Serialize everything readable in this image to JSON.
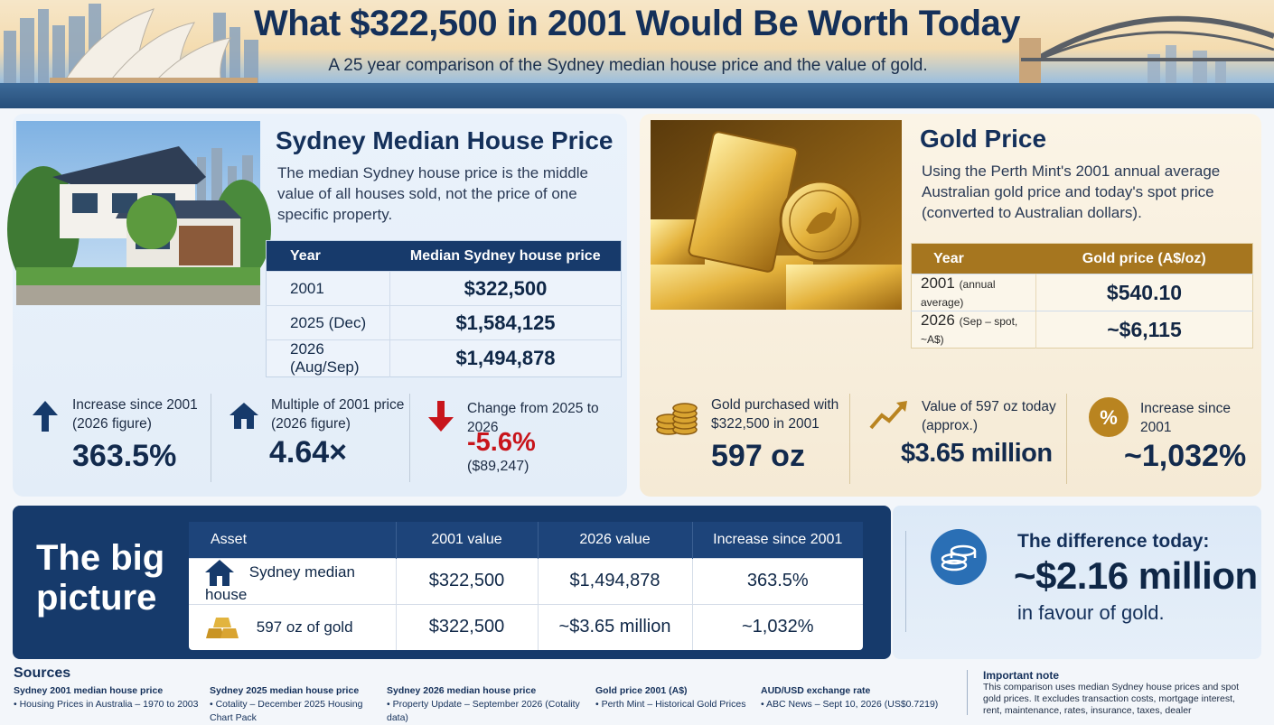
{
  "header": {
    "title": "What $322,500 in 2001 Would Be Worth Today",
    "subtitle": "A 25 year comparison of the Sydney median house price and the value of gold."
  },
  "house": {
    "title": "Sydney Median House Price",
    "description": "The median Sydney house price is the middle value of all houses sold, not the price of one specific property.",
    "table": {
      "headers": [
        "Year",
        "Median Sydney house price"
      ],
      "rows": [
        {
          "year": "2001",
          "note": "",
          "price": "$322,500"
        },
        {
          "year": "2025",
          "note": "(Dec)",
          "price": "$1,584,125"
        },
        {
          "year": "2026",
          "note": "(Aug/Sep)",
          "price": "$1,494,878"
        }
      ]
    },
    "stats": [
      {
        "label": "Increase since 2001 (2026 figure)",
        "value": "363.5%",
        "sub": ""
      },
      {
        "label": "Multiple of 2001 price (2026 figure)",
        "value": "4.64×",
        "sub": ""
      },
      {
        "label": "Change from 2025 to 2026",
        "value": "-5.6%",
        "sub": "($89,247)"
      }
    ]
  },
  "gold": {
    "title": "Gold Price",
    "description": "Using the Perth Mint's 2001 annual average Australian gold price and today's spot price (converted to Australian dollars).",
    "table": {
      "headers": [
        "Year",
        "Gold price (A$/oz)"
      ],
      "rows": [
        {
          "year": "2001",
          "note": "(annual average)",
          "price": "$540.10"
        },
        {
          "year": "2026",
          "note": "(Sep – spot, ~A$)",
          "price": "~$6,115"
        }
      ]
    },
    "stats": [
      {
        "label": "Gold purchased with $322,500 in 2001",
        "value": "597 oz"
      },
      {
        "label": "Value of 597 oz today (approx.)",
        "value": "$3.65 million"
      },
      {
        "label": "Increase since 2001",
        "value": "~1,032%"
      }
    ]
  },
  "big_picture": {
    "heading_line1": "The big",
    "heading_line2": "picture",
    "headers": [
      "Asset",
      "2001 value",
      "2026 value",
      "Increase since 2001"
    ],
    "rows": [
      {
        "asset": "Sydney median house",
        "icon": "house-icon",
        "v2001": "$322,500",
        "v2026": "$1,494,878",
        "increase": "363.5%"
      },
      {
        "asset": "597 oz of gold",
        "icon": "gold-bars-icon",
        "v2001": "$322,500",
        "v2026": "~$3.65 million",
        "increase": "~1,032%"
      }
    ],
    "difference_label": "The difference today:",
    "difference_value": "~$2.16 million",
    "difference_sub": "in favour of gold."
  },
  "sources": {
    "title": "Sources",
    "items": [
      {
        "heading": "Sydney 2001 median house price",
        "line": "Housing Prices in Australia – 1970 to 2003"
      },
      {
        "heading": "Sydney 2025 median house price",
        "line": "Cotality – December 2025 Housing Chart Pack"
      },
      {
        "heading": "Sydney 2026 median house price",
        "line": "Property Update – September 2026 (Cotality data)"
      },
      {
        "heading": "Gold price 2001 (A$)",
        "line": "Perth Mint – Historical Gold Prices"
      },
      {
        "heading": "AUD/USD exchange rate",
        "line": "ABC News – Sept 10, 2026 (US$0.7219)"
      }
    ],
    "important_title": "Important note",
    "important_text": "This comparison uses median Sydney house prices and spot gold prices. It excludes transaction costs, mortgage interest, rent, maintenance, rates, insurance, taxes, dealer"
  },
  "colors": {
    "navy": "#163a6b",
    "gold": "#a6761f",
    "red": "#c8151b"
  }
}
